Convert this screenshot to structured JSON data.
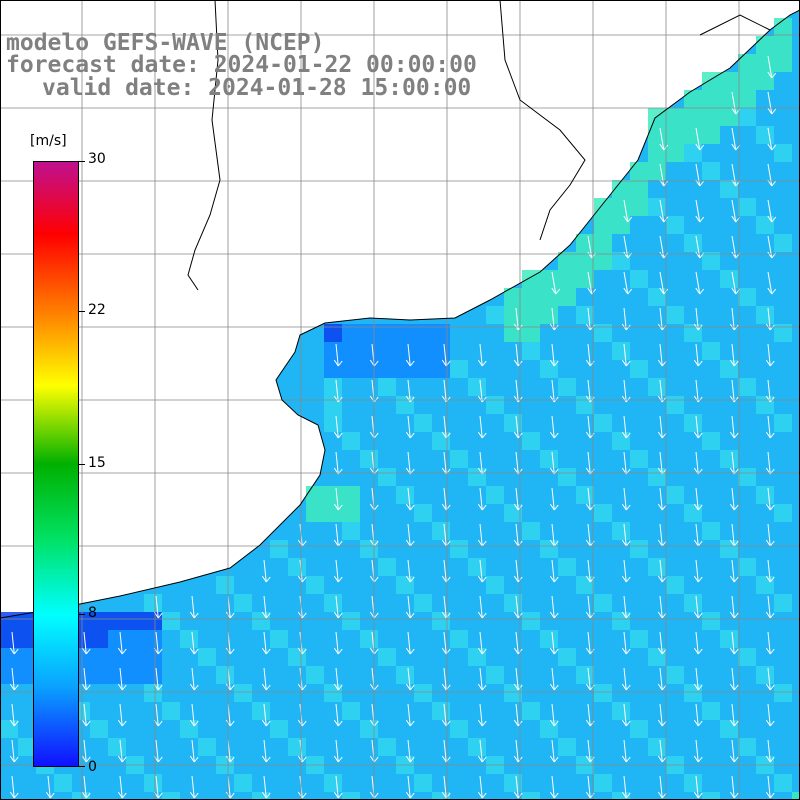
{
  "title": {
    "model": "modelo GEFS-WAVE (NCEP)",
    "forecast": "forecast date: 2024-01-22 00:00:00",
    "valid": "valid date: 2024-01-28 15:00:00"
  },
  "colorbar": {
    "unit": "[m/s]",
    "ticks": [
      "30",
      "22",
      "15",
      "8",
      "0"
    ],
    "range": [
      0,
      30
    ],
    "colors": [
      "#1010ff",
      "#0aa0ff",
      "#00ffff",
      "#00e060",
      "#00b000",
      "#ffff00",
      "#ff8000",
      "#ff0000",
      "#c01090"
    ]
  },
  "map_colors": {
    "land": "#ffffff",
    "ocean_base": "#20b6f5",
    "ocean_light": "#33d6ee",
    "ocean_green": "#40eac0",
    "ocean_dark": "#1088ff",
    "ocean_deep": "#0a40f0",
    "arrow": "#ffffff",
    "grid": "#888888",
    "coast": "#000000"
  },
  "wind_direction": "arrows pointing south / south-west over the ocean"
}
